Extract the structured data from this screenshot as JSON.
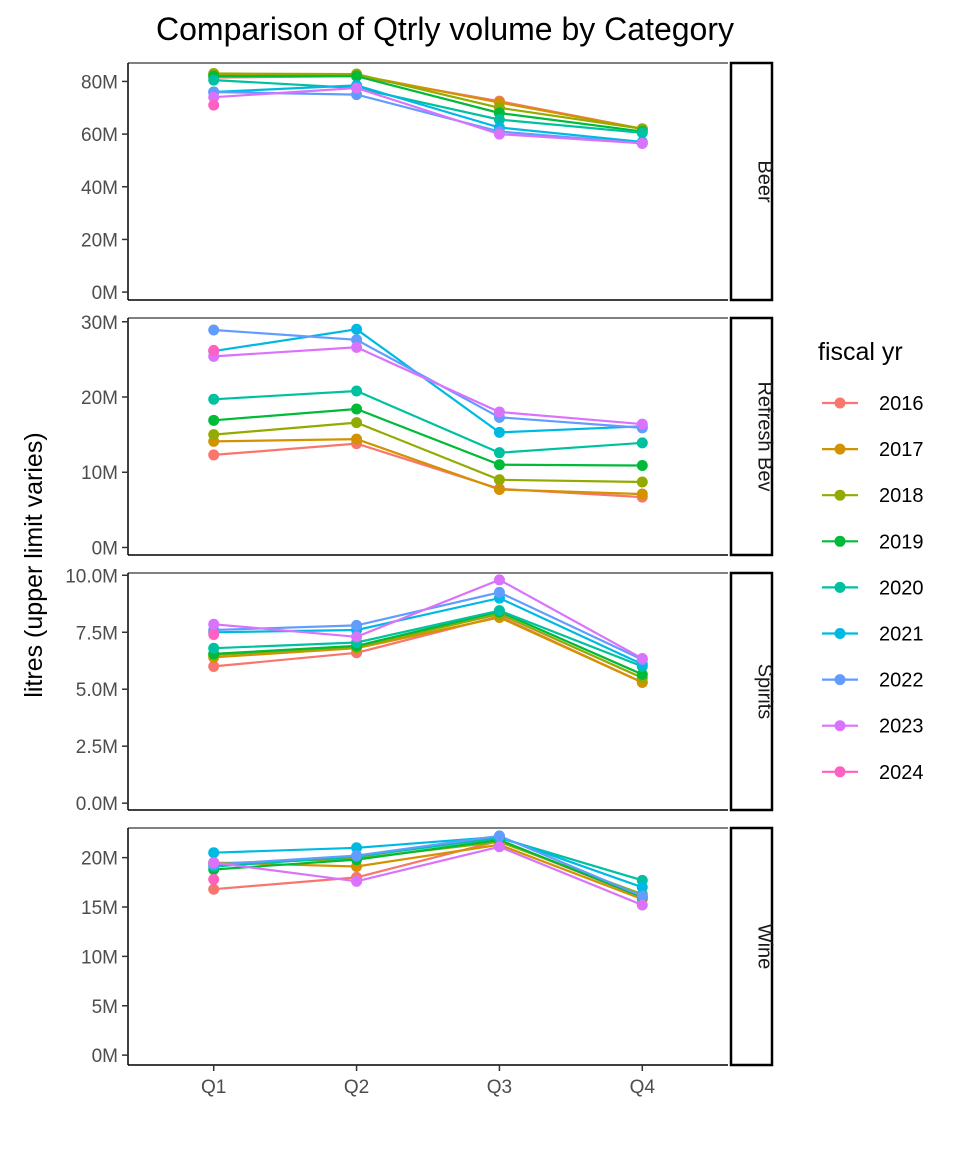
{
  "chart_data": {
    "type": "line",
    "title": "Comparison of Qtrly volume by Category",
    "xlabel": "",
    "ylabel": "litres (upper limit varies)",
    "categories": [
      "Q1",
      "Q2",
      "Q3",
      "Q4"
    ],
    "legend": {
      "title": "fiscal yr",
      "position": "right",
      "entries": [
        {
          "name": "2016",
          "color": "#F8766D"
        },
        {
          "name": "2017",
          "color": "#D39200"
        },
        {
          "name": "2018",
          "color": "#93AA00"
        },
        {
          "name": "2019",
          "color": "#00BA38"
        },
        {
          "name": "2020",
          "color": "#00C19F"
        },
        {
          "name": "2021",
          "color": "#00B9E3"
        },
        {
          "name": "2022",
          "color": "#619CFF"
        },
        {
          "name": "2023",
          "color": "#DB72FB"
        },
        {
          "name": "2024",
          "color": "#FF61C3"
        }
      ]
    },
    "grid": false,
    "facets": [
      {
        "label": "Beer",
        "ylim": [
          -3000000,
          87000000
        ],
        "yticks": [
          0,
          20000000,
          40000000,
          60000000,
          80000000
        ],
        "yticklabels": [
          "0M",
          "20M",
          "40M",
          "60M",
          "80M"
        ],
        "series": [
          {
            "name": "2016",
            "values": [
              81500000,
              82000000,
              72500000,
              62000000
            ]
          },
          {
            "name": "2017",
            "values": [
              82500000,
              82500000,
              72000000,
              62000000
            ]
          },
          {
            "name": "2018",
            "values": [
              83000000,
              82800000,
              70000000,
              62000000
            ]
          },
          {
            "name": "2019",
            "values": [
              82000000,
              82000000,
              68000000,
              61000000
            ]
          },
          {
            "name": "2020",
            "values": [
              80500000,
              77500000,
              65500000,
              60500000
            ]
          },
          {
            "name": "2021",
            "values": [
              76000000,
              78500000,
              62500000,
              57000000
            ]
          },
          {
            "name": "2022",
            "values": [
              76000000,
              75000000,
              61000000,
              56500000
            ]
          },
          {
            "name": "2023",
            "values": [
              74000000,
              77500000,
              60000000,
              56500000
            ]
          },
          {
            "name": "2024",
            "values": [
              71000000,
              null,
              null,
              null
            ]
          }
        ]
      },
      {
        "label": "Refresh Bev",
        "ylim": [
          -1000000,
          30500000
        ],
        "yticks": [
          0,
          10000000,
          20000000,
          30000000
        ],
        "yticklabels": [
          "0M",
          "10M",
          "20M",
          "30M"
        ],
        "series": [
          {
            "name": "2016",
            "values": [
              12300000,
              13800000,
              7800000,
              6700000
            ]
          },
          {
            "name": "2017",
            "values": [
              14100000,
              14400000,
              7700000,
              7100000
            ]
          },
          {
            "name": "2018",
            "values": [
              15000000,
              16600000,
              9000000,
              8700000
            ]
          },
          {
            "name": "2019",
            "values": [
              16900000,
              18400000,
              11000000,
              10900000
            ]
          },
          {
            "name": "2020",
            "values": [
              19700000,
              20800000,
              12600000,
              13900000
            ]
          },
          {
            "name": "2021",
            "values": [
              26100000,
              29000000,
              15300000,
              16100000
            ]
          },
          {
            "name": "2022",
            "values": [
              28900000,
              27600000,
              17300000,
              15900000
            ]
          },
          {
            "name": "2023",
            "values": [
              25400000,
              26600000,
              18000000,
              16400000
            ]
          },
          {
            "name": "2024",
            "values": [
              26200000,
              null,
              null,
              null
            ]
          }
        ]
      },
      {
        "label": "Spirits",
        "ylim": [
          -300000,
          10100000
        ],
        "yticks": [
          0,
          2500000,
          5000000,
          7500000,
          10000000
        ],
        "yticklabels": [
          "0.0M",
          "2.5M",
          "5.0M",
          "7.5M",
          "10.0M"
        ],
        "series": [
          {
            "name": "2016",
            "values": [
              6000000,
              6600000,
              8200000,
              5300000
            ]
          },
          {
            "name": "2017",
            "values": [
              6400000,
              6800000,
              8150000,
              5300000
            ]
          },
          {
            "name": "2018",
            "values": [
              6500000,
              6850000,
              8300000,
              5500000
            ]
          },
          {
            "name": "2019",
            "values": [
              6550000,
              6900000,
              8400000,
              5650000
            ]
          },
          {
            "name": "2020",
            "values": [
              6800000,
              7050000,
              8450000,
              6000000
            ]
          },
          {
            "name": "2021",
            "values": [
              7500000,
              7600000,
              9000000,
              6100000
            ]
          },
          {
            "name": "2022",
            "values": [
              7600000,
              7800000,
              9250000,
              6300000
            ]
          },
          {
            "name": "2023",
            "values": [
              7850000,
              7300000,
              9800000,
              6350000
            ]
          },
          {
            "name": "2024",
            "values": [
              7400000,
              null,
              null,
              null
            ]
          }
        ]
      },
      {
        "label": "Wine",
        "ylim": [
          -1000000,
          23000000
        ],
        "yticks": [
          0,
          5000000,
          10000000,
          15000000,
          20000000
        ],
        "yticklabels": [
          "0M",
          "5M",
          "10M",
          "15M",
          "20M"
        ],
        "series": [
          {
            "name": "2016",
            "values": [
              16800000,
              18000000,
              21700000,
              16000000
            ]
          },
          {
            "name": "2017",
            "values": [
              19500000,
              19100000,
              21300000,
              15800000
            ]
          },
          {
            "name": "2018",
            "values": [
              19400000,
              19900000,
              21600000,
              16300000
            ]
          },
          {
            "name": "2019",
            "values": [
              18800000,
              19800000,
              21800000,
              16000000
            ]
          },
          {
            "name": "2020",
            "values": [
              19100000,
              20100000,
              22000000,
              17700000
            ]
          },
          {
            "name": "2021",
            "values": [
              20500000,
              21000000,
              22100000,
              17000000
            ]
          },
          {
            "name": "2022",
            "values": [
              19300000,
              20200000,
              22200000,
              16100000
            ]
          },
          {
            "name": "2023",
            "values": [
              19500000,
              17600000,
              21100000,
              15200000
            ]
          },
          {
            "name": "2024",
            "values": [
              17800000,
              null,
              null,
              null
            ]
          }
        ]
      }
    ]
  }
}
